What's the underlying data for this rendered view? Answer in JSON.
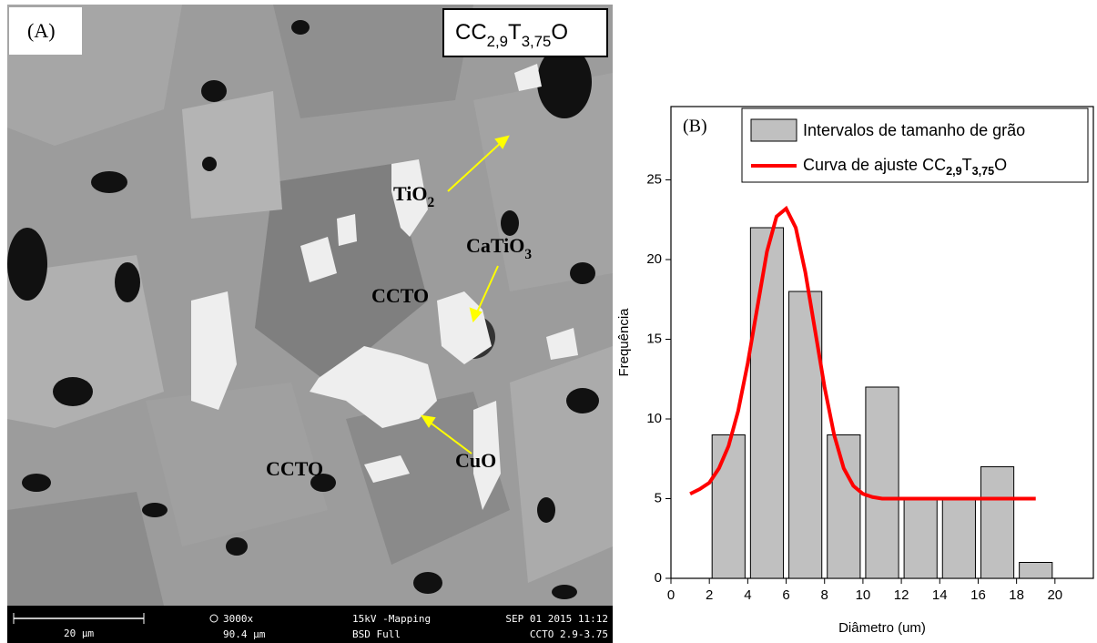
{
  "image_panel": {
    "label": "(A)",
    "sample": [
      "CC",
      "2,9",
      "T",
      "3,75",
      "O"
    ],
    "annotations": [
      [
        "TiO",
        "2"
      ],
      [
        "CaTiO",
        "3"
      ],
      [
        "CCTO"
      ],
      [
        "CCTO"
      ],
      [
        "CuO"
      ]
    ],
    "info_bar": {
      "scale": "20 µm",
      "magnification": "3000x",
      "field": "90.4 µm",
      "voltage": "15kV -Mapping",
      "detector": "BSD Full",
      "date": "SEP 01 2015 11:12",
      "sample": "CCTO 2.9-3.75"
    }
  },
  "chart_data": {
    "type": "histogram",
    "panel_label": "(B)",
    "x_label": "Diâmetro (um)",
    "y_label": "Frequência",
    "bins": [
      2,
      4,
      6,
      8,
      10,
      12,
      14,
      16,
      18,
      20
    ],
    "series": [
      {
        "name": "Intervalos de tamanho de grão",
        "color": "#c0c0c0",
        "values": [
          9,
          22,
          18,
          9,
          12,
          5,
          5,
          7,
          1
        ]
      }
    ],
    "fit": {
      "name": [
        "Curva de ajuste CC",
        "2,9",
        "T",
        "3,75",
        "O"
      ],
      "color": "#ff0000",
      "x": [
        1,
        1.5,
        2,
        2.5,
        3,
        3.5,
        4,
        4.5,
        5,
        5.5,
        6,
        6.5,
        7,
        7.5,
        8,
        8.5,
        9,
        9.5,
        10,
        10.5,
        11,
        12,
        13,
        14,
        15,
        16,
        17,
        18,
        19
      ],
      "values": [
        5.3,
        5.6,
        6.0,
        6.9,
        8.3,
        10.5,
        13.5,
        17.0,
        20.5,
        22.7,
        23.2,
        22.0,
        19.2,
        15.6,
        12.0,
        9.0,
        6.9,
        5.8,
        5.3,
        5.1,
        5.0,
        5.0,
        5.0,
        5.0,
        5.0,
        5.0,
        5.0,
        5.0,
        5.0
      ]
    },
    "xlim": [
      0,
      22
    ],
    "xticks": [
      0,
      2,
      4,
      6,
      8,
      10,
      12,
      14,
      16,
      18,
      20
    ],
    "ylim": [
      0,
      29.6
    ],
    "yticks": [
      0,
      5,
      10,
      15,
      20,
      25
    ]
  }
}
